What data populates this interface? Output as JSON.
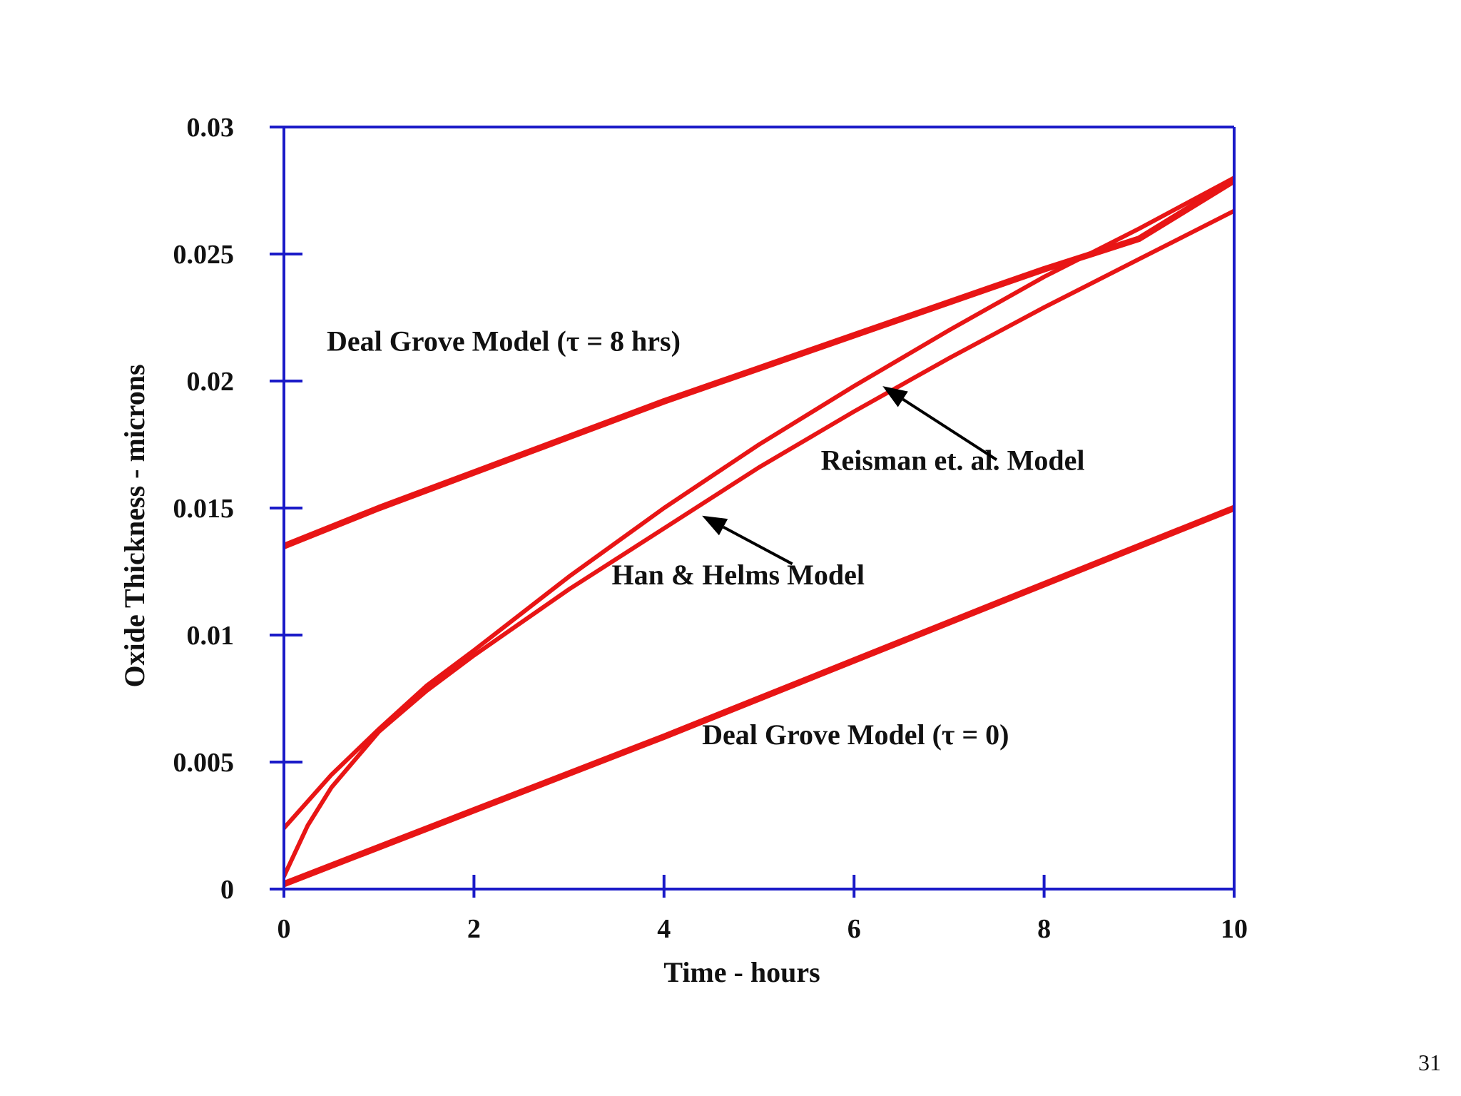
{
  "page_number": "31",
  "colors": {
    "axis": "#1a1ac8",
    "series": "#e81515",
    "arrow": "#000000"
  },
  "chart_data": {
    "type": "line",
    "xlabel": "Time - hours",
    "ylabel": "Oxide Thickness - microns",
    "xlim": [
      0,
      10
    ],
    "ylim": [
      0,
      0.03
    ],
    "xticks": [
      0,
      2,
      4,
      6,
      8,
      10
    ],
    "xtick_labels": [
      "0",
      "2",
      "4",
      "6",
      "8",
      "10"
    ],
    "yticks": [
      0,
      0.005,
      0.01,
      0.015,
      0.02,
      0.025,
      0.03
    ],
    "ytick_labels": [
      "0",
      "0.005",
      "0.01",
      "0.015",
      "0.02",
      "0.025",
      "0.03"
    ],
    "grid": false,
    "series": [
      {
        "name": "Deal Grove Model (τ = 8 hrs)",
        "x": [
          0,
          1,
          2,
          3,
          4,
          5,
          6,
          7,
          8,
          9,
          10
        ],
        "y": [
          0.0135,
          0.015,
          0.0164,
          0.0178,
          0.0192,
          0.0205,
          0.0218,
          0.0231,
          0.0244,
          0.0256,
          0.0279
        ]
      },
      {
        "name": "Reisman et. al. Model",
        "x": [
          0,
          0.5,
          1,
          1.5,
          2,
          3,
          4,
          5,
          6,
          7,
          8,
          9,
          10
        ],
        "y": [
          0.0024,
          0.0045,
          0.0063,
          0.008,
          0.0094,
          0.0123,
          0.015,
          0.0175,
          0.0198,
          0.022,
          0.0241,
          0.026,
          0.028
        ]
      },
      {
        "name": "Han & Helms Model",
        "x": [
          0,
          0.25,
          0.5,
          1,
          1.5,
          2,
          3,
          4,
          5,
          6,
          7,
          8,
          9,
          10
        ],
        "y": [
          0.0005,
          0.0025,
          0.004,
          0.0062,
          0.0078,
          0.0092,
          0.0118,
          0.0142,
          0.0166,
          0.0188,
          0.0209,
          0.0229,
          0.0248,
          0.0267
        ]
      },
      {
        "name": "Deal Grove Model (τ = 0)",
        "x": [
          0,
          2,
          4,
          6,
          8,
          10
        ],
        "y": [
          0.0002,
          0.0031,
          0.006,
          0.009,
          0.012,
          0.015
        ]
      }
    ],
    "annotations": [
      {
        "text": "Deal Grove Model (τ = 8 hrs)",
        "label_at": [
          0.45,
          0.0212
        ],
        "arrow": false
      },
      {
        "text": "Reisman et. al. Model",
        "label_at": [
          5.65,
          0.0165
        ],
        "arrow": true,
        "arrow_from": [
          7.5,
          0.0169
        ],
        "arrow_to": [
          6.3,
          0.0198
        ]
      },
      {
        "text": "Han & Helms Model",
        "label_at": [
          3.45,
          0.012
        ],
        "arrow": true,
        "arrow_from": [
          5.35,
          0.0128
        ],
        "arrow_to": [
          4.4,
          0.0147
        ]
      },
      {
        "text": "Deal Grove Model (τ = 0)",
        "label_at": [
          4.4,
          0.0057
        ],
        "arrow": false
      }
    ]
  }
}
